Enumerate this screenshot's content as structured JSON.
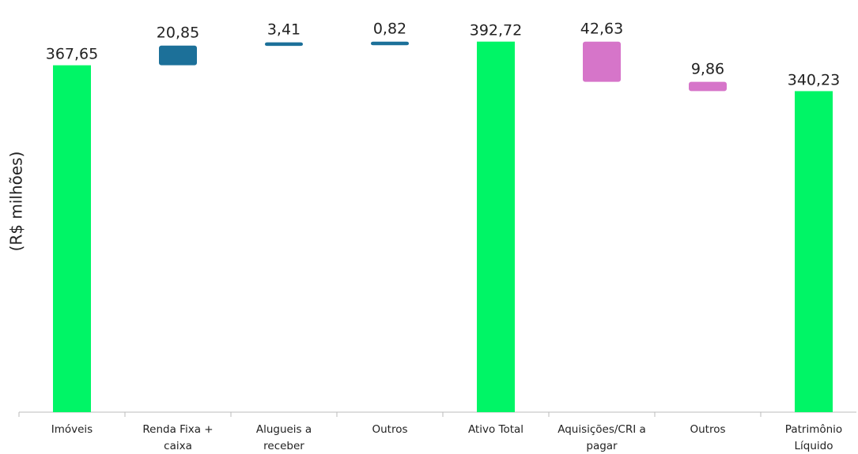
{
  "chart_data": {
    "type": "waterfall",
    "y_label": "(R$ milhões)",
    "categories": [
      "Imóveis",
      "Renda Fixa + caixa",
      "Alugueis a receber",
      "Outros",
      "Ativo Total",
      "Aquisições/CRI a pagar",
      "Outros",
      "Patrimônio Líquido"
    ],
    "values": [
      367.65,
      20.85,
      3.41,
      0.82,
      392.72,
      42.63,
      9.86,
      340.23
    ],
    "value_labels": [
      "367,65",
      "20,85",
      "3,41",
      "0,82",
      "392,72",
      "42,63",
      "9,86",
      "340,23"
    ],
    "measures": [
      "total",
      "increase",
      "increase",
      "increase",
      "total",
      "decrease",
      "decrease",
      "total"
    ],
    "colors": {
      "total": "#00f566",
      "increase": "#1c7099",
      "decrease": "#d675c9"
    },
    "ylim": [
      0,
      400
    ]
  }
}
